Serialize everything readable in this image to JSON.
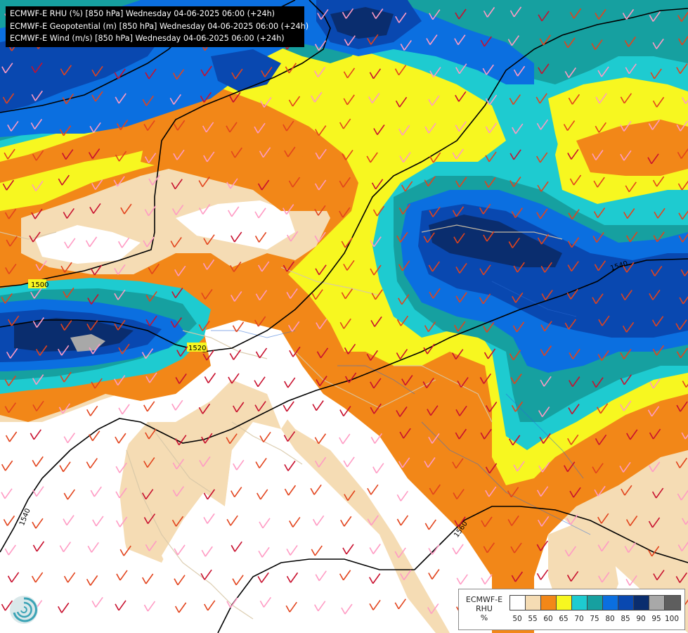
{
  "title_lines": [
    "ECMWF-E RHU (%) [850 hPa] Wednesday 04-06-2025 06:00 (+24h)",
    "ECMWF-E Geopotential (m) [850 hPa] Wednesday 04-06-2025 06:00 (+24h)",
    "ECMWF-E Wind (m/s) [850 hPa] Wednesday 04-06-2025 06:00 (+24h)"
  ],
  "contour_labels": [
    "1500",
    "1520",
    "1540",
    "1540",
    "1560"
  ],
  "legend": {
    "label_lines": [
      "ECMWF-E",
      "RHU",
      "%"
    ],
    "colors": [
      "#ffffff",
      "#f5dcb4",
      "#f28718",
      "#f7f720",
      "#1ecbd0",
      "#16a0a0",
      "#0b6fe0",
      "#0948b0",
      "#0a2d6e",
      "#a8a8a8",
      "#5e5e5e"
    ],
    "ticks": [
      "50",
      "55",
      "60",
      "65",
      "70",
      "75",
      "80",
      "85",
      "90",
      "95",
      "100"
    ]
  },
  "map_colors": {
    "white": "#ffffff",
    "tan": "#f5dcb4",
    "orange": "#f28718",
    "yellow": "#f7f720",
    "cyan": "#1ecbd0",
    "teal": "#16a0a0",
    "blue": "#0b6fe0",
    "darkblue": "#0948b0",
    "navy": "#0a2d6e",
    "gray": "#a8a8a8",
    "contour": "#000000",
    "border": "#d8c8a8",
    "river": "#2b6bd6"
  },
  "logo_icon": "ecmwf-swirl-logo-icon"
}
